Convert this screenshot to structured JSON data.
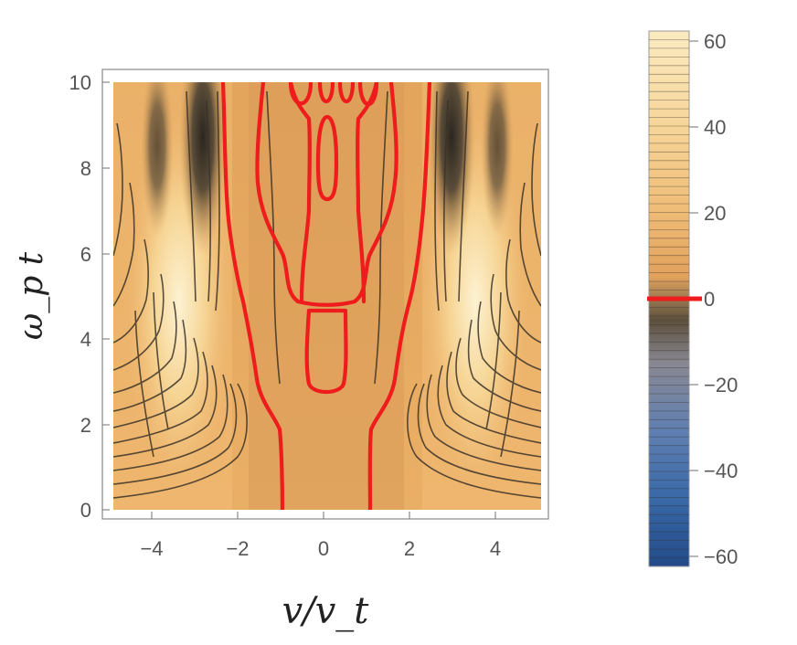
{
  "chart_data": [
    {
      "type": "heatmap",
      "subtype": "contour",
      "title": "",
      "xlabel": "v/v_t",
      "ylabel": "ω_p t",
      "xlim": [
        -5,
        5
      ],
      "ylim": [
        0,
        10
      ],
      "x_ticks": [
        "−4",
        "−2",
        "0",
        "2",
        "4"
      ],
      "y_ticks": [
        "0",
        "2",
        "4",
        "6",
        "8",
        "10"
      ],
      "x_tick_values": [
        -4,
        -2,
        0,
        2,
        4
      ],
      "y_tick_values": [
        0,
        2,
        4,
        6,
        8,
        10
      ],
      "zero_contour": {
        "color": "#ee1c1c",
        "outer_left": [
          [
            -1.0,
            0
          ],
          [
            -1.0,
            1.5
          ],
          [
            -1.4,
            2.6
          ],
          [
            -1.7,
            3.8
          ],
          [
            -1.8,
            4.8
          ],
          [
            -2.0,
            5.8
          ],
          [
            -2.2,
            7.2
          ],
          [
            -2.4,
            8.5
          ],
          [
            -2.5,
            10
          ]
        ],
        "outer_right": [
          [
            1.0,
            0
          ],
          [
            1.05,
            1.5
          ],
          [
            1.4,
            2.6
          ],
          [
            1.8,
            3.8
          ],
          [
            1.9,
            4.8
          ],
          [
            2.1,
            5.8
          ],
          [
            2.3,
            7.2
          ],
          [
            2.4,
            8.5
          ],
          [
            2.5,
            10
          ]
        ],
        "closed_loops": [
          {
            "x_range": [
              -0.4,
              0.4
            ],
            "t_range": [
              2.7,
              4.7
            ]
          },
          {
            "x_range": [
              -0.2,
              0.2
            ],
            "t_range": [
              7.2,
              9.0
            ]
          }
        ]
      },
      "features": [
        {
          "name": "bright peaks",
          "x": [
            -3.5,
            3.5
          ],
          "t_range": [
            2.5,
            10
          ]
        },
        {
          "name": "dark troughs",
          "x": [
            -3.0,
            3.0
          ],
          "t_range": [
            6.5,
            10
          ]
        }
      ]
    },
    {
      "type": "colorbar",
      "values": [
        60,
        40,
        20,
        0,
        -20,
        -40,
        -60
      ],
      "tick_labels": [
        "60",
        "40",
        "20",
        "0",
        "−20",
        "−40",
        "−60"
      ],
      "range": [
        -62,
        62
      ],
      "highlight_value": 0,
      "highlight_color": "#ee1c1c",
      "colors": {
        "top": "#fbe9b9",
        "upper": "#f3c583",
        "middle": "#e2a55a",
        "dark": "#554b3a",
        "gray": "#8e8e98",
        "lower": "#2f5ea8",
        "bottom": "#22488a"
      }
    }
  ]
}
